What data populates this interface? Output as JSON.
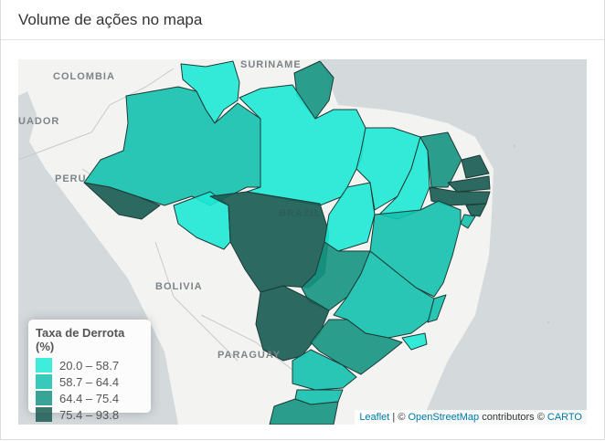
{
  "header": {
    "title": "Volume de ações no mapa"
  },
  "map": {
    "labels": {
      "colombia": "COLOMBIA",
      "suriname": "SURINAME",
      "equador": "UADOR",
      "peru": "PERU",
      "brazil": "BRAZIL",
      "bolivia": "BOLIVIA",
      "paraguay": "PARAGUAY"
    },
    "colors": {
      "land": "#f3f3f1",
      "water": "#d4dadc",
      "border": "#c7c7c7",
      "state_outline": "#1c3b36"
    }
  },
  "legend": {
    "title": "Taxa de Derrota (%)",
    "bins": [
      {
        "label": "20.0 – 58.7",
        "color": "#1ee9d6"
      },
      {
        "label": "58.7 – 64.4",
        "color": "#14c1ae"
      },
      {
        "label": "64.4 – 75.4",
        "color": "#159482"
      },
      {
        "label": "75.4 – 93.8",
        "color": "#1a5d55"
      }
    ]
  },
  "attribution": {
    "leaflet": "Leaflet",
    "sep": " | © ",
    "osm": "OpenStreetMap",
    "contributors": " contributors © ",
    "carto": "CARTO"
  }
}
